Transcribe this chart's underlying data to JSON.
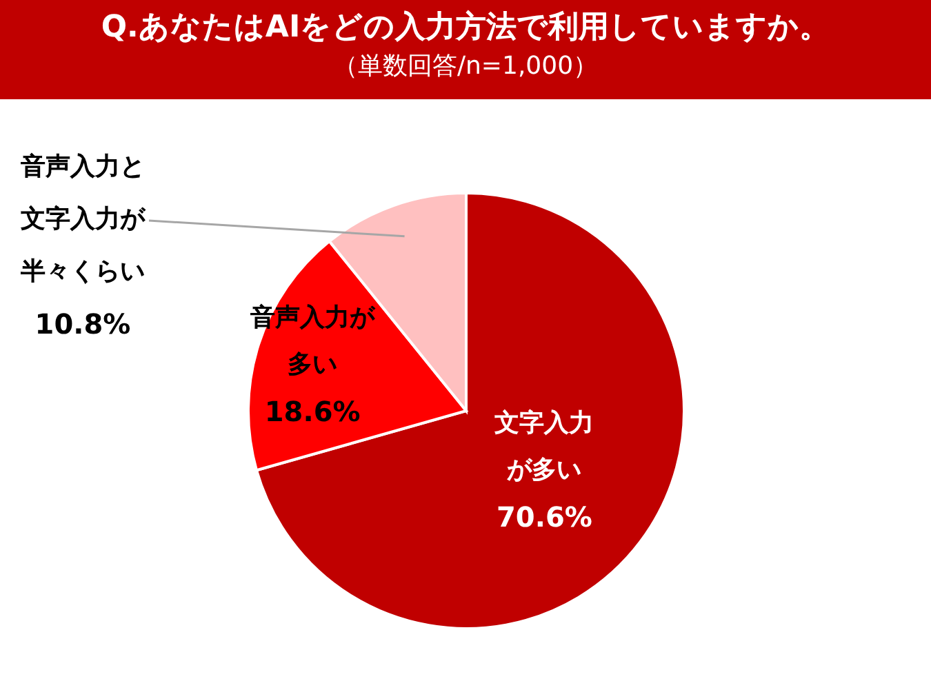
{
  "chart_data": {
    "type": "pie",
    "title": "Q.あなたはAIをどの入力方法で利用していますか。",
    "subtitle": "（単数回答/n=1,000）",
    "categories": [
      "文字入力が多い",
      "音声入力が多い",
      "音声入力と文字入力が半々くらい"
    ],
    "values": [
      70.6,
      18.6,
      10.8
    ],
    "colors": [
      "#c00000",
      "#ff0000",
      "#ffc0c0"
    ],
    "value_labels": [
      "70.6%",
      "18.6%",
      "10.8%"
    ],
    "legend": false
  }
}
